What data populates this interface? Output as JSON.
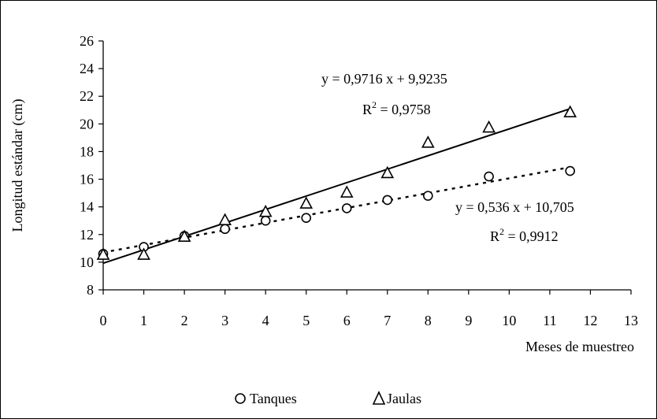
{
  "chart_data": {
    "type": "scatter",
    "title": "",
    "xlabel": "Meses de muestreo",
    "ylabel": "Longitud estándar (cm)",
    "xlim": [
      0,
      13
    ],
    "ylim": [
      8,
      26
    ],
    "x_ticks": [
      "0",
      "1",
      "2",
      "3",
      "4",
      "5",
      "6",
      "7",
      "8",
      "9",
      "10",
      "11",
      "12",
      "13"
    ],
    "y_ticks": [
      "8",
      "10",
      "12",
      "14",
      "16",
      "18",
      "20",
      "22",
      "24",
      "26"
    ],
    "grid": false,
    "legend_position": "bottom",
    "series": [
      {
        "name": "Tanques",
        "marker": "circle",
        "points": [
          [
            0,
            10.6
          ],
          [
            1,
            11.1
          ],
          [
            2,
            11.9
          ],
          [
            3,
            12.4
          ],
          [
            4,
            13.0
          ],
          [
            5,
            13.2
          ],
          [
            6,
            13.9
          ],
          [
            7,
            14.5
          ],
          [
            8,
            14.8
          ],
          [
            9.5,
            16.2
          ],
          [
            11.5,
            16.6
          ]
        ],
        "trendline": {
          "slope": 0.536,
          "intercept": 10.705,
          "style": "dotted",
          "equation": "y = 0,536 x + 10,705",
          "r2_label": "R",
          "r2_exp": "2",
          "r2_value": " = 0,9912"
        }
      },
      {
        "name": "Jaulas",
        "marker": "triangle",
        "points": [
          [
            0,
            10.5
          ],
          [
            1,
            10.5
          ],
          [
            2,
            11.8
          ],
          [
            3,
            13.0
          ],
          [
            4,
            13.6
          ],
          [
            5,
            14.2
          ],
          [
            6,
            15.0
          ],
          [
            7,
            16.4
          ],
          [
            8,
            18.6
          ],
          [
            9.5,
            19.7
          ],
          [
            11.5,
            20.8
          ]
        ],
        "trendline": {
          "slope": 0.9716,
          "intercept": 9.9235,
          "style": "solid",
          "equation": "y = 0,9716 x + 9,9235",
          "r2_label": "R",
          "r2_exp": "2",
          "r2_value": " = 0,9758"
        }
      }
    ]
  }
}
